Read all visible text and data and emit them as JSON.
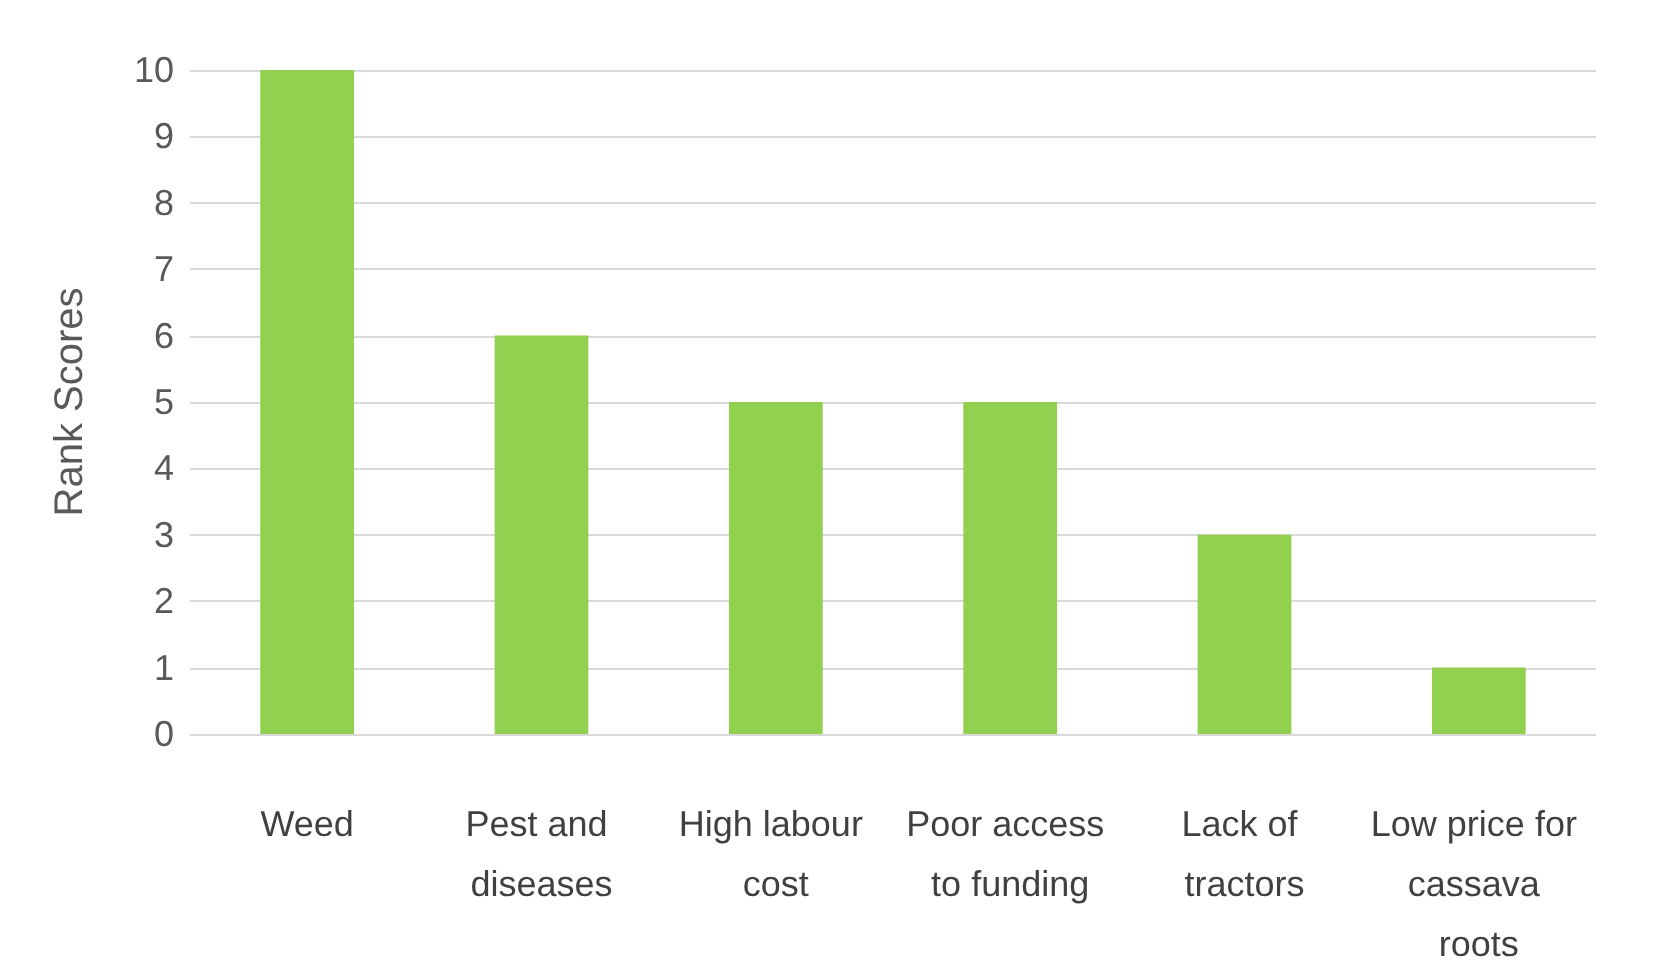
{
  "chart_data": {
    "type": "bar",
    "ylabel": "Rank Scores",
    "categories": [
      "Weed",
      "Pest and diseases",
      "High labour cost",
      "Poor access to funding",
      "Lack of tractors",
      "Low price for cassava roots"
    ],
    "values": [
      10,
      6,
      5,
      5,
      3,
      1
    ],
    "color": "#92d050",
    "ylim": [
      0,
      10
    ],
    "yticks": [
      0,
      1,
      2,
      3,
      4,
      5,
      6,
      7,
      8,
      9,
      10
    ],
    "grid": true
  }
}
